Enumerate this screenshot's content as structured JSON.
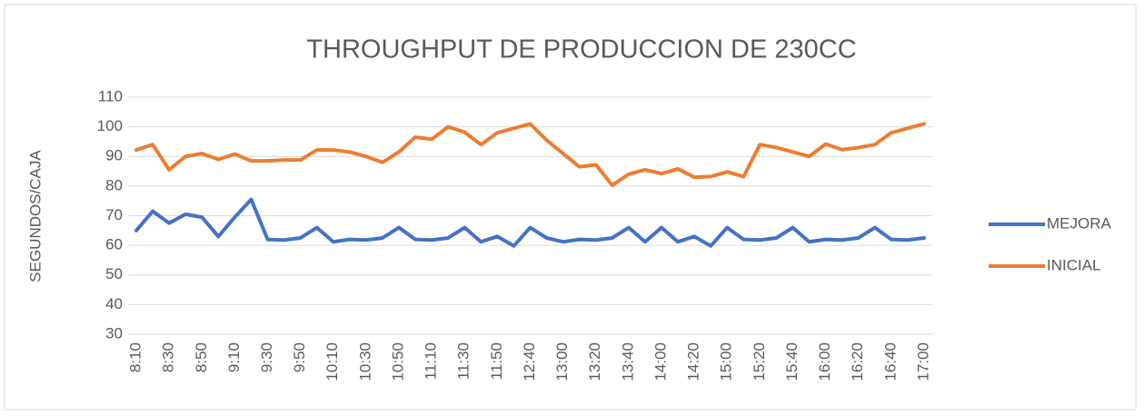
{
  "chart_data": {
    "type": "line",
    "title": "THROUGHPUT DE PRODUCCION DE 230CC",
    "y_label": "SEGUNDOS/CAJA",
    "categories": [
      "8:10",
      null,
      "8:30",
      null,
      "8:50",
      null,
      "9:10",
      null,
      "9:30",
      null,
      "9:50",
      null,
      "10:10",
      null,
      "10:30",
      null,
      "10:50",
      null,
      "11:10",
      null,
      "11:30",
      null,
      "11:50",
      null,
      "12:40",
      null,
      "13:00",
      null,
      "13:20",
      null,
      "13:40",
      null,
      "14:00",
      null,
      "14:20",
      null,
      "15:00",
      null,
      "15:20",
      null,
      "15:40",
      null,
      "16:00",
      null,
      "16:20",
      null,
      "16:40",
      null,
      "17:00"
    ],
    "series": [
      {
        "name": "MEJORA",
        "color": "#4472c4",
        "values": [
          65,
          71.5,
          67.5,
          70.5,
          69.5,
          63,
          69.5,
          75.5,
          62,
          61.8,
          62.5,
          66,
          61.2,
          62,
          61.8,
          62.5,
          66,
          62,
          61.8,
          62.5,
          66,
          61.2,
          63,
          59.8,
          66,
          62.5,
          61.2,
          62,
          61.8,
          62.5,
          66,
          61.2,
          66,
          61.2,
          63,
          59.8,
          66,
          62,
          61.8,
          62.5,
          66,
          61.2,
          62,
          61.8,
          62.5,
          66,
          62,
          61.8,
          62.5
        ]
      },
      {
        "name": "INICIAL",
        "color": "#ed7d31",
        "values": [
          92.2,
          94,
          85.5,
          90,
          91,
          89,
          90.8,
          88.5,
          88.5,
          88.8,
          88.8,
          92.2,
          92.2,
          91.5,
          90,
          88,
          91.5,
          96.5,
          95.8,
          100,
          98.2,
          94,
          98,
          99.5,
          101,
          95.5,
          91,
          86.5,
          87.2,
          80.3,
          84,
          85.5,
          84.2,
          85.8,
          83,
          83.2,
          84.8,
          83.2,
          94,
          93,
          91.5,
          90,
          94.2,
          92.3,
          93,
          94,
          98,
          99.5,
          101
        ]
      }
    ],
    "ylim": [
      30,
      110
    ],
    "yticks": [
      30,
      40,
      50,
      60,
      70,
      80,
      90,
      100,
      110
    ],
    "grid": true,
    "legend": "right"
  }
}
